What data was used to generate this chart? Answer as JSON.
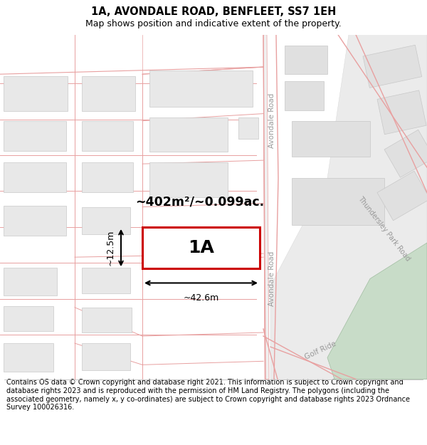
{
  "title": "1A, AVONDALE ROAD, BENFLEET, SS7 1EH",
  "subtitle": "Map shows position and indicative extent of the property.",
  "footer": "Contains OS data © Crown copyright and database right 2021. This information is subject to Crown copyright and database rights 2023 and is reproduced with the permission of HM Land Registry. The polygons (including the associated geometry, namely x, y co-ordinates) are subject to Crown copyright and database rights 2023 Ordnance Survey 100026316.",
  "label_1A": "1A",
  "area_label": "~402m²/~0.099ac.",
  "width_label": "~42.6m",
  "height_label": "~12.5m",
  "road_label_avondale1": "Avondale Road",
  "road_label_avondale2": "Avondale Road",
  "road_label_thundersley": "Thundersley Park Road",
  "road_label_golf": "Golf Ride",
  "title_fontsize": 10.5,
  "subtitle_fontsize": 9,
  "footer_fontsize": 7.0
}
